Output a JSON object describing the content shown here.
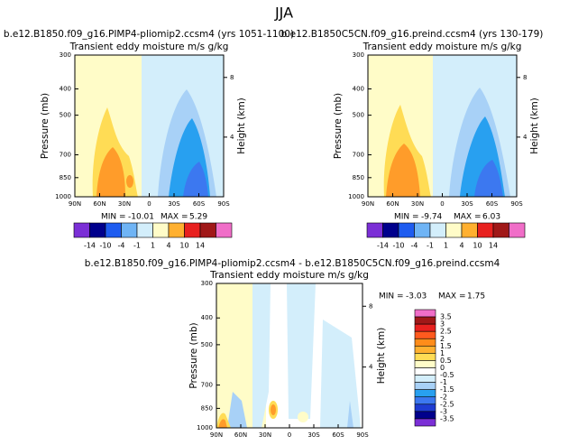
{
  "title": "JJA",
  "chart_data": [
    {
      "type": "contour",
      "title": "b.e12.B1850.f09_g16.PIMP4-pliomip2.ccsm4 (yrs 1051-1100)",
      "subtitle": "Transient eddy moisture m/s g/kg",
      "ylabel": "Pressure (mb)",
      "y2label": "Height (km)",
      "xlim": [
        90,
        -90
      ],
      "xticks": [
        {
          "value": 90,
          "label": "90N"
        },
        {
          "value": 60,
          "label": "60N"
        },
        {
          "value": 30,
          "label": "30N"
        },
        0,
        {
          "value": -30,
          "label": "30S"
        },
        {
          "value": -60,
          "label": "60S"
        },
        {
          "value": -90,
          "label": "90S"
        }
      ],
      "ylim": [
        300,
        1000
      ],
      "ylog": true,
      "yticks": [
        300,
        400,
        500,
        700,
        850,
        1000
      ],
      "y2lim": [
        0,
        9.5
      ],
      "y2ticks": [
        4,
        8
      ],
      "min_label": "MIN =",
      "min": -10.01,
      "max_label": "MAX =",
      "max": 5.29,
      "colorbar": {
        "orientation": "horizontal",
        "colors": [
          "#7b2fd6",
          "#00008c",
          "#1e5cf0",
          "#6fb4f5",
          "#d3eefb",
          "#fffcc8",
          "#ffb030",
          "#e8211f",
          "#a01818",
          "#f06ec8"
        ],
        "labels": [
          -14,
          -10,
          -4,
          -1,
          1,
          4,
          10,
          14
        ]
      }
    },
    {
      "type": "contour",
      "title": "b.e12.B1850C5CN.f09_g16.preind.ccsm4 (yrs 130-179)",
      "subtitle": "Transient eddy moisture m/s g/kg",
      "ylabel": "Pressure (mb)",
      "y2label": "Height (km)",
      "xlim": [
        90,
        -90
      ],
      "xticks": [
        {
          "value": 90,
          "label": "90N"
        },
        {
          "value": 60,
          "label": "60N"
        },
        {
          "value": 30,
          "label": "30N"
        },
        0,
        {
          "value": -30,
          "label": "30S"
        },
        {
          "value": -60,
          "label": "60S"
        },
        {
          "value": -90,
          "label": "90S"
        }
      ],
      "ylim": [
        300,
        1000
      ],
      "ylog": true,
      "yticks": [
        300,
        400,
        500,
        700,
        850,
        1000
      ],
      "y2lim": [
        0,
        9.5
      ],
      "y2ticks": [
        4,
        8
      ],
      "min_label": "MIN =",
      "min": -9.74,
      "max_label": "MAX =",
      "max": 6.03,
      "colorbar": {
        "orientation": "horizontal",
        "colors": [
          "#7b2fd6",
          "#00008c",
          "#1e5cf0",
          "#6fb4f5",
          "#d3eefb",
          "#fffcc8",
          "#ffb030",
          "#e8211f",
          "#a01818",
          "#f06ec8"
        ],
        "labels": [
          -14,
          -10,
          -4,
          -1,
          1,
          4,
          10,
          14
        ]
      }
    },
    {
      "type": "contour",
      "title": "b.e12.B1850.f09_g16.PIMP4-pliomip2.ccsm4 - b.e12.B1850C5CN.f09_g16.preind.ccsm4",
      "subtitle": "Transient eddy moisture m/s g/kg",
      "ylabel": "Pressure (mb)",
      "y2label": "Height (km)",
      "xlim": [
        90,
        -90
      ],
      "xticks": [
        {
          "value": 90,
          "label": "90N"
        },
        {
          "value": 60,
          "label": "60N"
        },
        {
          "value": 30,
          "label": "30N"
        },
        0,
        {
          "value": -30,
          "label": "30S"
        },
        {
          "value": -60,
          "label": "60S"
        },
        {
          "value": -90,
          "label": "90S"
        }
      ],
      "ylim": [
        300,
        1000
      ],
      "ylog": true,
      "yticks": [
        300,
        400,
        500,
        700,
        850,
        1000
      ],
      "y2lim": [
        0,
        9.5
      ],
      "y2ticks": [
        4,
        8
      ],
      "min_label": "MIN =",
      "min": -3.03,
      "max_label": "MAX =",
      "max": 1.75,
      "colorbar": {
        "orientation": "vertical",
        "colors": [
          "#f06ec8",
          "#a01818",
          "#e8211f",
          "#ff5a1e",
          "#ff8c1a",
          "#ffb030",
          "#ffdc55",
          "#fffcc8",
          "#ffffff",
          "#d3eefb",
          "#a8d1f7",
          "#28a0f0",
          "#3c78f0",
          "#1e3cd2",
          "#00008c",
          "#7b2fd6"
        ],
        "labels": [
          3.5,
          3,
          2.5,
          2,
          1.5,
          1,
          0.5,
          0,
          -0.5,
          -1,
          -1.5,
          -2,
          -2.5,
          -3,
          -3.5
        ]
      }
    }
  ]
}
